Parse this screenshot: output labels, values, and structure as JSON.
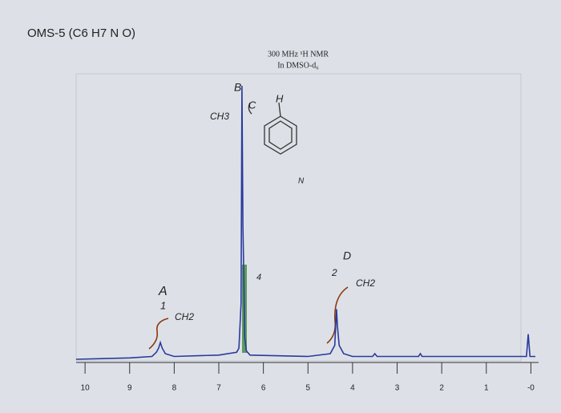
{
  "chart_data": {
    "type": "line",
    "title": "OMS-5 (C6 H7 N O)",
    "subtitle": [
      "300 MHz ¹H NMR",
      "In DMSO-d₆"
    ],
    "annotations": [
      "B",
      "CH3",
      "C",
      "H",
      "A",
      "1",
      "CH2",
      "D",
      "2",
      "CH2",
      "4",
      "N"
    ],
    "x": [
      10.2,
      9,
      8.5,
      8.4,
      8.35,
      8.31,
      8.27,
      8.2,
      8,
      7,
      6.6,
      6.55,
      6.5,
      6.48,
      6.46,
      6.44,
      6.42,
      6.38,
      6.3,
      5,
      4.5,
      4.4,
      4.36,
      4.34,
      4.3,
      4.2,
      4,
      3.55,
      3.5,
      3.45,
      2.52,
      2.48,
      2.44,
      0.1,
      0.06,
      0.02,
      -0.1
    ],
    "values": [
      0,
      0.5,
      1,
      2.5,
      4,
      6,
      4,
      2,
      1,
      1.5,
      2.5,
      4,
      20,
      98,
      48,
      30,
      8,
      3,
      1.5,
      1,
      2,
      5,
      18,
      12,
      5,
      2,
      1,
      1,
      2,
      1,
      1,
      2,
      1,
      1,
      9,
      1,
      1
    ],
    "color": "#2a3a9c",
    "xlim": [
      10.2,
      -0.1
    ],
    "ylim": [
      0,
      100
    ],
    "xticks": [
      10,
      9,
      8,
      7,
      6,
      5,
      4,
      3,
      2,
      1,
      {
        "value": 0,
        "label": "-0"
      }
    ]
  }
}
